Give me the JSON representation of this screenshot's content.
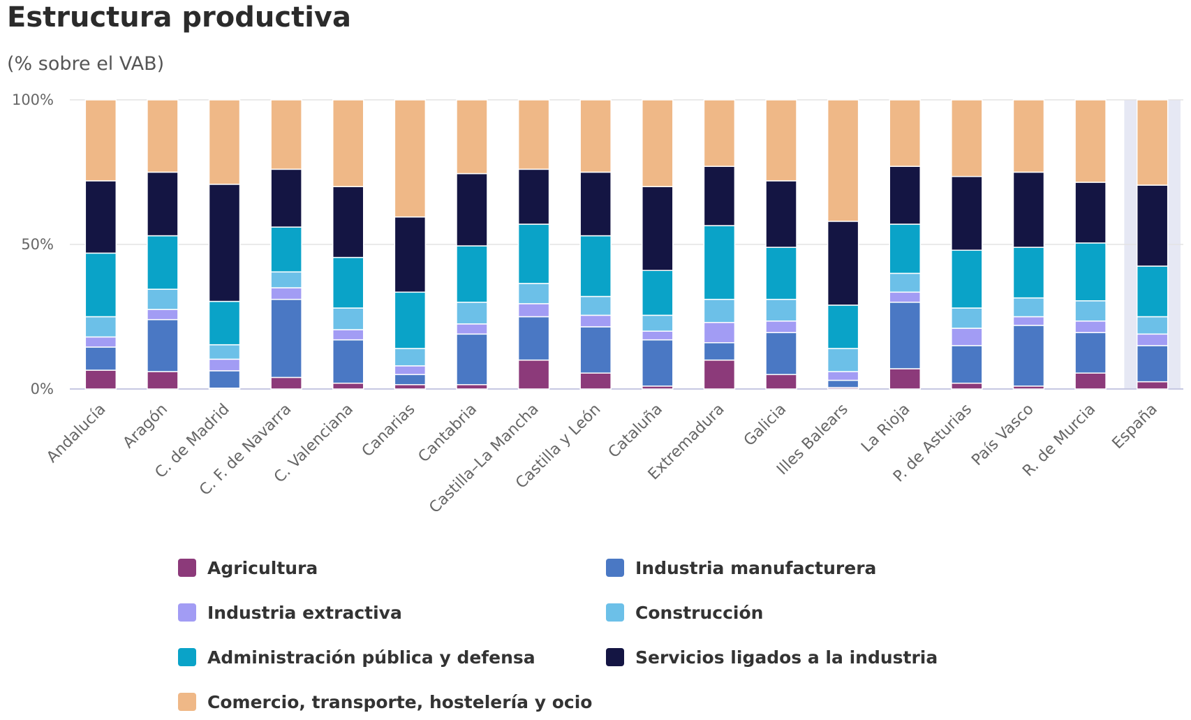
{
  "chart_data": {
    "type": "bar",
    "stacked": true,
    "title": "Estructura productiva",
    "subtitle": "(% sobre el VAB)",
    "ylim": [
      0,
      100
    ],
    "y_ticks": [
      {
        "value": 0,
        "label": "0%"
      },
      {
        "value": 50,
        "label": "50%"
      },
      {
        "value": 100,
        "label": "100%"
      }
    ],
    "highlight_category": "España",
    "highlight_color": "#e6e8f4",
    "legend_position": "bottom",
    "categories": [
      "Andalucía",
      "Aragón",
      "C. de Madrid",
      "C. F. de Navarra",
      "C. Valenciana",
      "Canarias",
      "Cantabria",
      "Castilla–La Mancha",
      "Castilla y León",
      "Cataluña",
      "Extremadura",
      "Galicia",
      "Illes Balears",
      "La Rioja",
      "P. de Asturias",
      "País Vasco",
      "R. de Murcia",
      "España"
    ],
    "series": [
      {
        "name": "Agricultura",
        "color": "#8c3a7a",
        "values": [
          6.5,
          6,
          0.3,
          4,
          2,
          1.5,
          1.5,
          10,
          5.5,
          1,
          10,
          5,
          0.5,
          7,
          2,
          1,
          5.5,
          2.5
        ]
      },
      {
        "name": "Industria manufacturera",
        "color": "#4a78c4",
        "values": [
          8,
          18,
          6,
          27,
          15,
          3.5,
          17.5,
          15,
          16,
          16,
          6,
          14.5,
          2.5,
          23,
          13,
          21,
          14,
          12.5
        ]
      },
      {
        "name": "Industria extractiva",
        "color": "#a29cf4",
        "values": [
          3.5,
          3.5,
          4,
          4,
          3.5,
          3,
          3.5,
          4.5,
          4,
          3,
          7,
          4,
          3,
          3.5,
          6,
          3,
          4,
          4
        ]
      },
      {
        "name": "Construcción",
        "color": "#6cc0e8",
        "values": [
          7,
          7,
          5,
          5.5,
          7.5,
          6,
          7.5,
          7,
          6.5,
          5.5,
          8,
          7.5,
          8,
          6.5,
          7,
          6.5,
          7,
          6
        ]
      },
      {
        "name": "Administración pública y defensa",
        "color": "#0aa3c8",
        "values": [
          22,
          18.5,
          15,
          15.5,
          17.5,
          19.5,
          19.5,
          20.5,
          21,
          15.5,
          25.5,
          18,
          15,
          17,
          20,
          17.5,
          20,
          17.5
        ]
      },
      {
        "name": "Servicios ligados a la industria",
        "color": "#141543",
        "values": [
          25,
          22,
          40.5,
          20,
          24.5,
          26,
          25,
          19,
          22,
          29,
          20.5,
          23,
          29,
          20,
          25.5,
          26,
          21,
          28
        ]
      },
      {
        "name": "Comercio, transporte, hostelería y ocio",
        "color": "#efb887",
        "values": [
          28,
          25,
          29.2,
          24,
          30,
          40.5,
          25.5,
          24,
          25,
          30,
          23,
          28,
          42,
          23,
          26.5,
          25,
          28.5,
          29.5
        ]
      }
    ]
  }
}
